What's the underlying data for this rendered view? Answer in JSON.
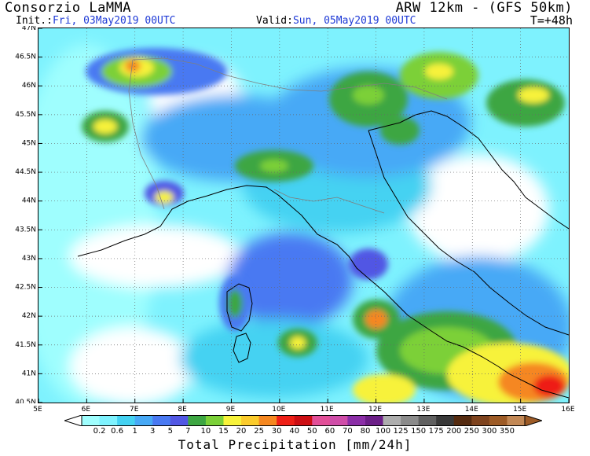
{
  "header": {
    "organization": "Consorzio LaMMA",
    "model": "ARW 12km - (GFS 50km)",
    "init_label": "Init.:",
    "init_value": "Fri, 03May2019 00UTC",
    "valid_label": "Valid:",
    "valid_value": "Sun, 05May2019 00UTC",
    "lead_time": "T=+48h"
  },
  "axes": {
    "lat_labels": [
      "47N",
      "46.5N",
      "46N",
      "45.5N",
      "45N",
      "44.5N",
      "44N",
      "43.5N",
      "43N",
      "42.5N",
      "42N",
      "41.5N",
      "41N",
      "40.5N"
    ],
    "lon_labels": [
      "5E",
      "6E",
      "7E",
      "8E",
      "9E",
      "10E",
      "11E",
      "12E",
      "13E",
      "14E",
      "15E",
      "16E"
    ]
  },
  "legend": {
    "title": "Total Precipitation [mm/24h]",
    "thresholds": [
      "0.2",
      "0.6",
      "1",
      "3",
      "5",
      "7",
      "10",
      "15",
      "20",
      "25",
      "30",
      "40",
      "50",
      "60",
      "70",
      "80",
      "100",
      "125",
      "150",
      "175",
      "200",
      "250",
      "300",
      "350"
    ],
    "colors": [
      "#9ffefe",
      "#7ef2fe",
      "#44d2f2",
      "#47a9f6",
      "#4979f2",
      "#5157e4",
      "#3da642",
      "#7bd038",
      "#f7f23a",
      "#fbcb2b",
      "#f58720",
      "#ee1f16",
      "#cc0e13",
      "#e24f98",
      "#cf4da8",
      "#8b2ea7",
      "#6b1e87",
      "#adadad",
      "#8b8b8b",
      "#606060",
      "#393939",
      "#552b10",
      "#7e431e",
      "#9d5b26",
      "#c28855"
    ],
    "over_color": "#9d5b26",
    "under_color": "#ffffff"
  }
}
